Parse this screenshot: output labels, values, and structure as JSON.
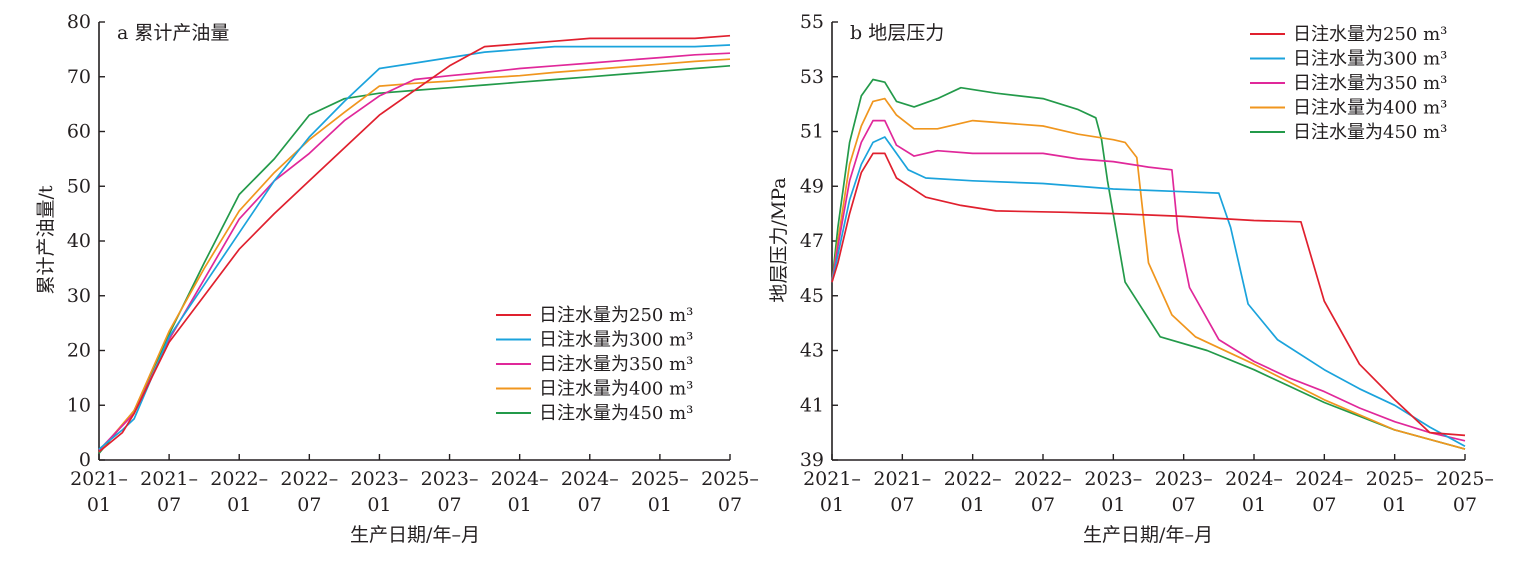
{
  "colors": {
    "axis": "#231f20",
    "series_250": "#e0202e",
    "series_300": "#1ba3dc",
    "series_350": "#e0289a",
    "series_400": "#f0961e",
    "series_450": "#239a4a"
  },
  "chart_data": [
    {
      "type": "line",
      "title": "a 累计产油量",
      "xlabel": "生产日期/年–月",
      "ylabel": "累计产油量/t",
      "x_ticks": [
        {
          "value": 0,
          "line1": "2021–",
          "line2": "01"
        },
        {
          "value": 6,
          "line1": "2021–",
          "line2": "07"
        },
        {
          "value": 12,
          "line1": "2022–",
          "line2": "01"
        },
        {
          "value": 18,
          "line1": "2022–",
          "line2": "07"
        },
        {
          "value": 24,
          "line1": "2023–",
          "line2": "01"
        },
        {
          "value": 30,
          "line1": "2023–",
          "line2": "07"
        },
        {
          "value": 36,
          "line1": "2024–",
          "line2": "01"
        },
        {
          "value": 42,
          "line1": "2024–",
          "line2": "07"
        },
        {
          "value": 48,
          "line1": "2025–",
          "line2": "01"
        },
        {
          "value": 54,
          "line1": "2025–",
          "line2": "07"
        }
      ],
      "xlim": [
        0,
        54
      ],
      "ylim": [
        0,
        80
      ],
      "y_ticks": [
        "0",
        "10",
        "20",
        "30",
        "40",
        "50",
        "60",
        "70",
        "80"
      ],
      "grid": false,
      "legend_position": "bottom-right",
      "series": [
        {
          "name": "日注水量为250 m³",
          "color_key": "series_250",
          "points": [
            [
              0,
              1.5
            ],
            [
              2,
              5
            ],
            [
              3,
              8.5
            ],
            [
              6,
              21.5
            ],
            [
              9,
              30
            ],
            [
              12,
              38.5
            ],
            [
              15,
              45
            ],
            [
              18,
              51
            ],
            [
              21,
              57
            ],
            [
              24,
              63
            ],
            [
              27,
              67.5
            ],
            [
              30,
              72
            ],
            [
              33,
              75.5
            ],
            [
              36,
              76
            ],
            [
              39,
              76.5
            ],
            [
              42,
              77
            ],
            [
              45,
              77
            ],
            [
              48,
              77
            ],
            [
              51,
              77
            ],
            [
              54,
              77.5
            ]
          ]
        },
        {
          "name": "日注水量为300 m³",
          "color_key": "series_300",
          "points": [
            [
              0,
              2
            ],
            [
              2,
              5.5
            ],
            [
              3,
              7.5
            ],
            [
              6,
              22.5
            ],
            [
              9,
              32
            ],
            [
              12,
              41.5
            ],
            [
              15,
              51
            ],
            [
              18,
              59
            ],
            [
              21,
              65.5
            ],
            [
              24,
              71.5
            ],
            [
              27,
              72.5
            ],
            [
              30,
              73.5
            ],
            [
              33,
              74.5
            ],
            [
              36,
              75
            ],
            [
              39,
              75.5
            ],
            [
              42,
              75.5
            ],
            [
              45,
              75.5
            ],
            [
              48,
              75.5
            ],
            [
              51,
              75.5
            ],
            [
              54,
              75.8
            ]
          ]
        },
        {
          "name": "日注水量为350 m³",
          "color_key": "series_350",
          "points": [
            [
              0,
              1.8
            ],
            [
              3,
              8.5
            ],
            [
              6,
              22
            ],
            [
              9,
              33
            ],
            [
              12,
              44
            ],
            [
              15,
              51
            ],
            [
              18,
              56
            ],
            [
              21,
              62
            ],
            [
              24,
              66.5
            ],
            [
              27,
              69.5
            ],
            [
              30,
              70.2
            ],
            [
              33,
              70.8
            ],
            [
              36,
              71.5
            ],
            [
              39,
              72
            ],
            [
              42,
              72.5
            ],
            [
              45,
              73
            ],
            [
              48,
              73.5
            ],
            [
              51,
              74
            ],
            [
              54,
              74.3
            ]
          ]
        },
        {
          "name": "日注水量为400 m³",
          "color_key": "series_400",
          "points": [
            [
              0,
              1.5
            ],
            [
              3,
              9
            ],
            [
              6,
              23.5
            ],
            [
              9,
              35
            ],
            [
              12,
              45.5
            ],
            [
              15,
              52.5
            ],
            [
              18,
              58.5
            ],
            [
              21,
              63.5
            ],
            [
              24,
              68.3
            ],
            [
              27,
              68.8
            ],
            [
              30,
              69.2
            ],
            [
              33,
              69.8
            ],
            [
              36,
              70.2
            ],
            [
              39,
              70.8
            ],
            [
              42,
              71.3
            ],
            [
              45,
              71.8
            ],
            [
              48,
              72.3
            ],
            [
              51,
              72.8
            ],
            [
              54,
              73.2
            ]
          ]
        },
        {
          "name": "日注水量为450 m³",
          "color_key": "series_450",
          "points": [
            [
              0,
              1.2
            ],
            [
              3,
              9
            ],
            [
              6,
              23
            ],
            [
              9,
              36
            ],
            [
              12,
              48.5
            ],
            [
              15,
              55
            ],
            [
              18,
              63
            ],
            [
              21,
              66
            ],
            [
              24,
              67
            ],
            [
              27,
              67.5
            ],
            [
              30,
              68
            ],
            [
              33,
              68.5
            ],
            [
              36,
              69
            ],
            [
              39,
              69.5
            ],
            [
              42,
              70
            ],
            [
              45,
              70.5
            ],
            [
              48,
              71
            ],
            [
              51,
              71.5
            ],
            [
              54,
              72
            ]
          ]
        }
      ]
    },
    {
      "type": "line",
      "title": "b 地层压力",
      "xlabel": "生产日期/年–月",
      "ylabel": "地层压力/MPa",
      "x_ticks": [
        {
          "value": 0,
          "line1": "2021–",
          "line2": "01"
        },
        {
          "value": 6,
          "line1": "2021–",
          "line2": "07"
        },
        {
          "value": 12,
          "line1": "2022–",
          "line2": "01"
        },
        {
          "value": 18,
          "line1": "2022–",
          "line2": "07"
        },
        {
          "value": 24,
          "line1": "2023–",
          "line2": "01"
        },
        {
          "value": 30,
          "line1": "2023–",
          "line2": "07"
        },
        {
          "value": 36,
          "line1": "2024–",
          "line2": "01"
        },
        {
          "value": 42,
          "line1": "2024–",
          "line2": "07"
        },
        {
          "value": 48,
          "line1": "2025–",
          "line2": "01"
        },
        {
          "value": 54,
          "line1": "2025–",
          "line2": "07"
        }
      ],
      "xlim": [
        0,
        54
      ],
      "ylim": [
        39,
        55
      ],
      "y_ticks": [
        "39",
        "41",
        "43",
        "45",
        "47",
        "49",
        "51",
        "53",
        "55"
      ],
      "grid": false,
      "legend_position": "top-right",
      "series": [
        {
          "name": "日注水量为250 m³",
          "color_key": "series_250",
          "points": [
            [
              0,
              45.5
            ],
            [
              0.5,
              46.2
            ],
            [
              1.5,
              48
            ],
            [
              2.5,
              49.5
            ],
            [
              3.5,
              50.2
            ],
            [
              4.5,
              50.2
            ],
            [
              5.5,
              49.3
            ],
            [
              8,
              48.6
            ],
            [
              11,
              48.3
            ],
            [
              14,
              48.1
            ],
            [
              20,
              48.05
            ],
            [
              24,
              48.0
            ],
            [
              30,
              47.9
            ],
            [
              36,
              47.75
            ],
            [
              40,
              47.7
            ],
            [
              42,
              44.8
            ],
            [
              45,
              42.5
            ],
            [
              48,
              41.2
            ],
            [
              51,
              40
            ],
            [
              54,
              39.9
            ]
          ]
        },
        {
          "name": "日注水量为300 m³",
          "color_key": "series_300",
          "points": [
            [
              0,
              45.5
            ],
            [
              0.5,
              46.5
            ],
            [
              1.5,
              48.5
            ],
            [
              2.5,
              49.8
            ],
            [
              3.5,
              50.6
            ],
            [
              4.5,
              50.8
            ],
            [
              5.5,
              50.2
            ],
            [
              6.5,
              49.6
            ],
            [
              8,
              49.3
            ],
            [
              12,
              49.2
            ],
            [
              18,
              49.1
            ],
            [
              24,
              48.9
            ],
            [
              30,
              48.8
            ],
            [
              33,
              48.75
            ],
            [
              34,
              47.5
            ],
            [
              35.5,
              44.7
            ],
            [
              38,
              43.4
            ],
            [
              42,
              42.3
            ],
            [
              45,
              41.6
            ],
            [
              48,
              41.0
            ],
            [
              51,
              40.2
            ],
            [
              54,
              39.5
            ]
          ]
        },
        {
          "name": "日注水量为350 m³",
          "color_key": "series_350",
          "points": [
            [
              0,
              45.5
            ],
            [
              0.5,
              46.8
            ],
            [
              1.5,
              49.2
            ],
            [
              2.5,
              50.6
            ],
            [
              3.5,
              51.4
            ],
            [
              4.5,
              51.4
            ],
            [
              5.5,
              50.5
            ],
            [
              7,
              50.1
            ],
            [
              9,
              50.3
            ],
            [
              12,
              50.2
            ],
            [
              18,
              50.2
            ],
            [
              21,
              50.0
            ],
            [
              24,
              49.9
            ],
            [
              27,
              49.7
            ],
            [
              29,
              49.6
            ],
            [
              29.5,
              47.4
            ],
            [
              30.5,
              45.3
            ],
            [
              33,
              43.4
            ],
            [
              36,
              42.6
            ],
            [
              39,
              42
            ],
            [
              42,
              41.5
            ],
            [
              45,
              40.9
            ],
            [
              48,
              40.4
            ],
            [
              51,
              40
            ],
            [
              54,
              39.7
            ]
          ]
        },
        {
          "name": "日注水量为400 m³",
          "color_key": "series_400",
          "points": [
            [
              0,
              45.5
            ],
            [
              0.5,
              47
            ],
            [
              1.5,
              49.8
            ],
            [
              2.5,
              51.2
            ],
            [
              3.5,
              52.1
            ],
            [
              4.5,
              52.2
            ],
            [
              5.5,
              51.6
            ],
            [
              7,
              51.1
            ],
            [
              9,
              51.1
            ],
            [
              12,
              51.4
            ],
            [
              18,
              51.2
            ],
            [
              21,
              50.9
            ],
            [
              24,
              50.7
            ],
            [
              25,
              50.6
            ],
            [
              26,
              50.05
            ],
            [
              27,
              46.2
            ],
            [
              29,
              44.3
            ],
            [
              31,
              43.5
            ],
            [
              36,
              42.5
            ],
            [
              42,
              41.2
            ],
            [
              48,
              40.1
            ],
            [
              54,
              39.4
            ]
          ]
        },
        {
          "name": "日注水量为450 m³",
          "color_key": "series_450",
          "points": [
            [
              0,
              45.5
            ],
            [
              0.5,
              47.5
            ],
            [
              1.5,
              50.6
            ],
            [
              2.5,
              52.3
            ],
            [
              3.5,
              52.9
            ],
            [
              4.5,
              52.8
            ],
            [
              5.5,
              52.1
            ],
            [
              7,
              51.9
            ],
            [
              9,
              52.2
            ],
            [
              11,
              52.6
            ],
            [
              14,
              52.4
            ],
            [
              18,
              52.2
            ],
            [
              21,
              51.8
            ],
            [
              22.5,
              51.5
            ],
            [
              23,
              50.7
            ],
            [
              23.5,
              49.2
            ],
            [
              25,
              45.5
            ],
            [
              28,
              43.5
            ],
            [
              32,
              43
            ],
            [
              36,
              42.3
            ],
            [
              42,
              41.1
            ],
            [
              48,
              40.1
            ],
            [
              54,
              39.4
            ]
          ]
        }
      ]
    }
  ]
}
